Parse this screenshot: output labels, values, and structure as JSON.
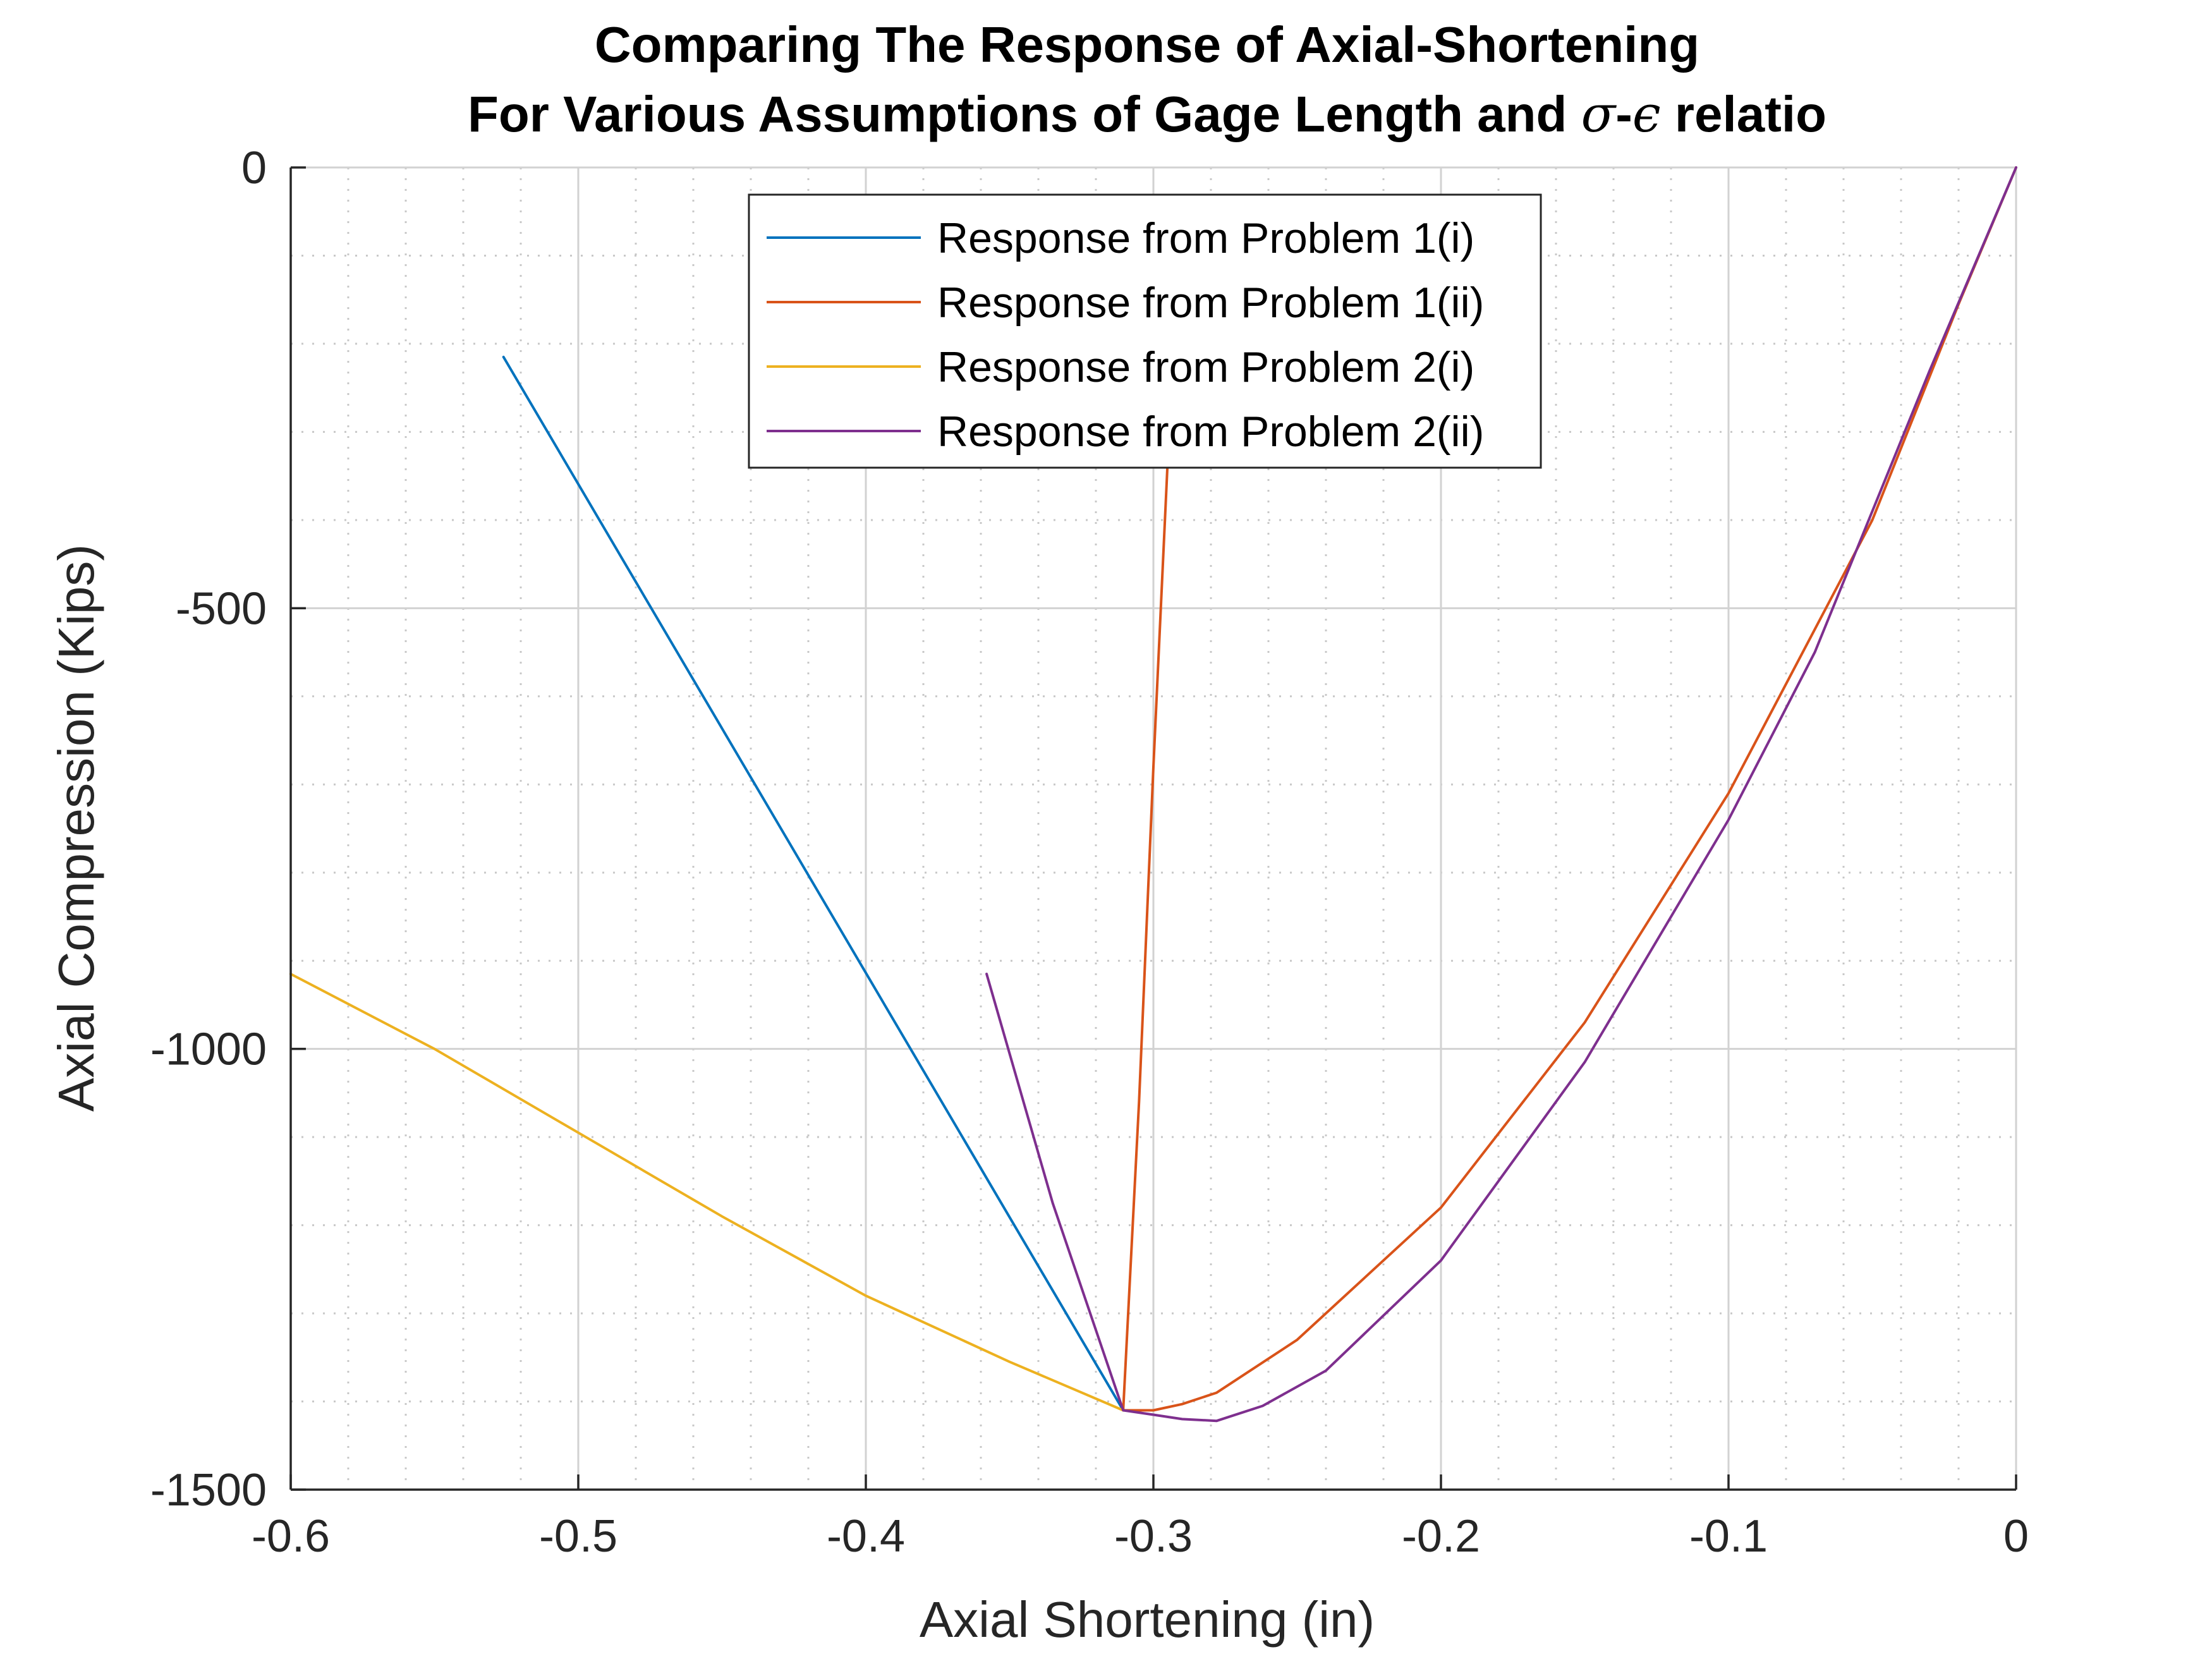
{
  "chart_data": {
    "type": "line",
    "title": [
      "Comparing The Response of Axial-Shortening",
      "For Various Assumptions of Gage Length and σ-ϵ relatio"
    ],
    "title_parts": {
      "line2_prefix": "For Various Assumptions of Gage Length and ",
      "sigma": "σ",
      "dash": "-",
      "epsilon": "ϵ",
      "line2_suffix": " relatio"
    },
    "xlabel": "Axial Shortening (in)",
    "ylabel": "Axial Compression (Kips)",
    "xlim": [
      -0.6,
      0
    ],
    "ylim": [
      -1500,
      0
    ],
    "xticks": [
      -0.6,
      -0.5,
      -0.4,
      -0.3,
      -0.2,
      -0.1,
      0
    ],
    "xtick_labels": [
      "-0.6",
      "-0.5",
      "-0.4",
      "-0.3",
      "-0.2",
      "-0.1",
      "0"
    ],
    "yticks": [
      -1500,
      -1000,
      -500,
      0
    ],
    "ytick_labels": [
      "-1500",
      "-1000",
      "-500",
      "0"
    ],
    "x_minor_step": 0.02,
    "y_minor_step": 100,
    "grid": true,
    "minor_grid": true,
    "legend_position": "top-center",
    "series": [
      {
        "name": "Response from Problem 1(i)",
        "color": "#0072BD",
        "x": [
          -0.526,
          -0.3105
        ],
        "y": [
          -215,
          -1410
        ]
      },
      {
        "name": "Response from Problem 1(ii)",
        "color": "#D95319",
        "x": [
          0,
          -0.02,
          -0.05,
          -0.1,
          -0.15,
          -0.2,
          -0.25,
          -0.278,
          -0.29,
          -0.3,
          -0.3105,
          -0.305,
          -0.3,
          -0.295,
          -0.291
        ],
        "y": [
          0,
          -155,
          -400,
          -710,
          -970,
          -1180,
          -1330,
          -1390,
          -1403,
          -1410,
          -1410,
          -1060,
          -680,
          -330,
          -160
        ]
      },
      {
        "name": "Response from Problem 2(i)",
        "color": "#EDB120",
        "x": [
          -0.6,
          -0.55,
          -0.5,
          -0.45,
          -0.4,
          -0.35,
          -0.3105
        ],
        "y": [
          -915,
          -1000,
          -1095,
          -1190,
          -1280,
          -1355,
          -1410
        ]
      },
      {
        "name": "Response from Problem 2(ii)",
        "color": "#7E2F8E",
        "x": [
          0,
          -0.03,
          -0.07,
          -0.1,
          -0.15,
          -0.2,
          -0.24,
          -0.262,
          -0.278,
          -0.29,
          -0.3,
          -0.3105,
          -0.335,
          -0.358
        ],
        "y": [
          0,
          -230,
          -550,
          -740,
          -1015,
          -1240,
          -1365,
          -1405,
          -1422,
          -1420,
          -1415,
          -1410,
          -1175,
          -915
        ]
      }
    ]
  }
}
